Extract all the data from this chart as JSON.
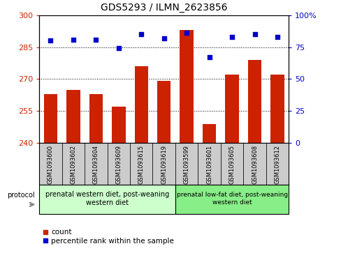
{
  "title": "GDS5293 / ILMN_2623856",
  "samples": [
    "GSM1093600",
    "GSM1093602",
    "GSM1093604",
    "GSM1093609",
    "GSM1093615",
    "GSM1093619",
    "GSM1093599",
    "GSM1093601",
    "GSM1093605",
    "GSM1093608",
    "GSM1093612"
  ],
  "count_values": [
    263,
    265,
    263,
    257,
    276,
    269,
    293,
    249,
    272,
    279,
    272
  ],
  "percentile_values": [
    80,
    81,
    81,
    74,
    85,
    82,
    86,
    67,
    83,
    85,
    83
  ],
  "ylim_left": [
    240,
    300
  ],
  "ylim_right": [
    0,
    100
  ],
  "yticks_left": [
    240,
    255,
    270,
    285,
    300
  ],
  "yticks_right": [
    0,
    25,
    50,
    75,
    100
  ],
  "bar_color": "#cc2200",
  "dot_color": "#0000cc",
  "group1_label": "prenatal western diet, post-weaning\nwestern diet",
  "group2_label": "prenatal low-fat diet, post-weaning\nwestern diet",
  "group1_count": 6,
  "group2_count": 5,
  "protocol_label": "protocol",
  "legend_count": "count",
  "legend_percentile": "percentile rank within the sample",
  "group_bg_color": "#cccccc",
  "group1_fill": "#ccffcc",
  "group2_fill": "#88ee88"
}
